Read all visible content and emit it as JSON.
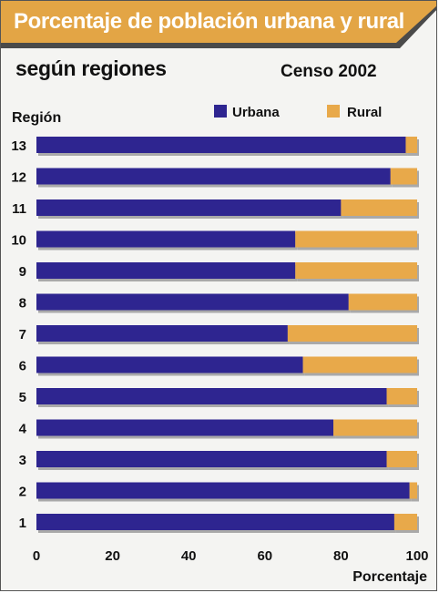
{
  "title": "Porcentaje de población urbana y rural",
  "subtitle": "según regiones",
  "census": "Censo 2002",
  "colors": {
    "urbana": "#2e2590",
    "rural": "#e8a94a",
    "band": "#e3a545",
    "band_dark": "#4a4a4a"
  },
  "chart_data": {
    "type": "bar",
    "orientation": "horizontal",
    "stacked": true,
    "ylabel": "Región",
    "xlabel": "Porcentaje",
    "categories": [
      "1",
      "2",
      "3",
      "4",
      "5",
      "6",
      "7",
      "8",
      "9",
      "10",
      "11",
      "12",
      "13"
    ],
    "series": [
      {
        "name": "Urbana",
        "values": [
          94,
          98,
          92,
          78,
          92,
          70,
          66,
          82,
          68,
          68,
          80,
          93,
          97
        ]
      },
      {
        "name": "Rural",
        "values": [
          6,
          2,
          8,
          22,
          8,
          30,
          34,
          18,
          32,
          32,
          20,
          7,
          3
        ]
      }
    ],
    "xlim": [
      0,
      100
    ],
    "xticks": [
      "0",
      "20",
      "40",
      "60",
      "80",
      "100"
    ],
    "legend": "top-right",
    "grid": false
  }
}
